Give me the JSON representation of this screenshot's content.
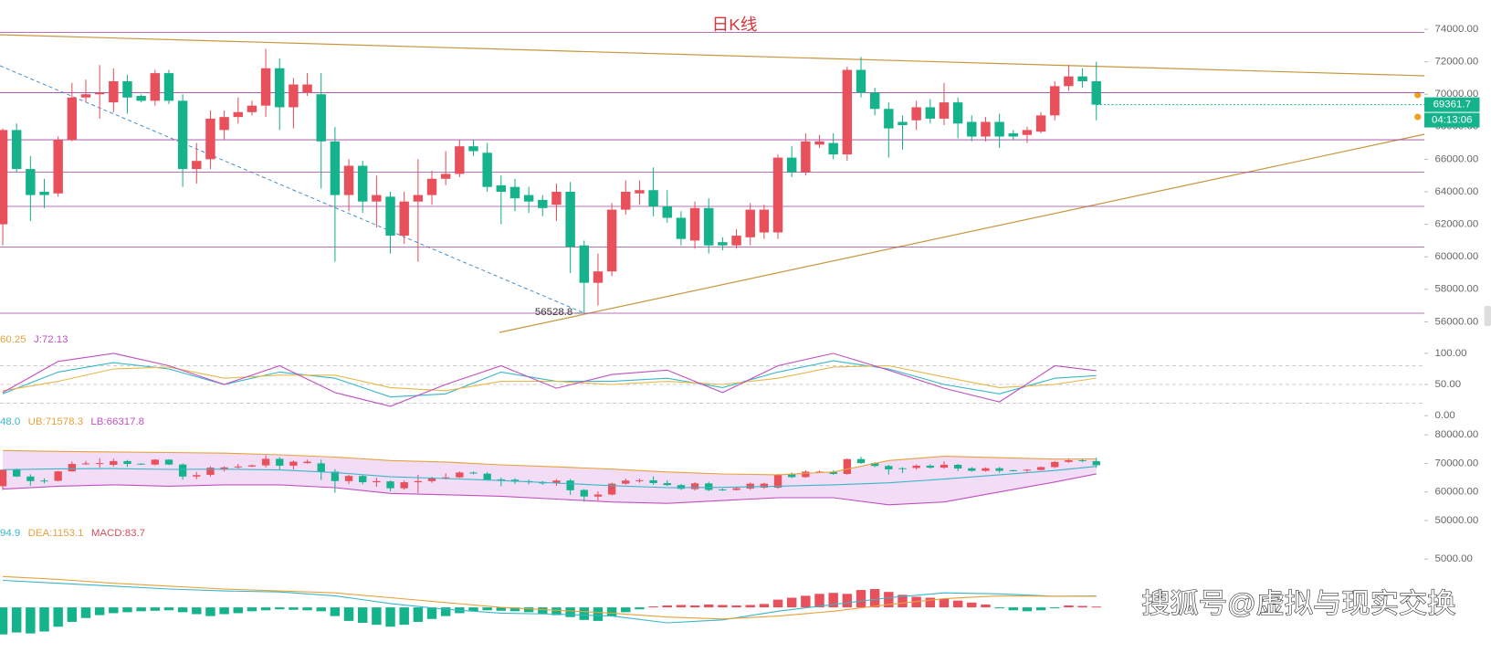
{
  "chart_data": [
    {
      "type": "candlestick",
      "title": "日K线",
      "countdown": "04:13:06",
      "xlim": [
        -0.2,
        102.7
      ],
      "ylim": [
        55460,
        75800
      ],
      "yticks": [
        {
          "value": 56000,
          "label": "56000.00"
        },
        {
          "value": 58000,
          "label": "58000.00"
        },
        {
          "value": 60000,
          "label": "60000.00"
        },
        {
          "value": 62000,
          "label": "62000.00"
        },
        {
          "value": 64000,
          "label": "64000.00"
        },
        {
          "value": 66000,
          "label": "66000.00"
        },
        {
          "value": 68000,
          "label": "68000.00"
        },
        {
          "value": 70000,
          "label": "70000.00"
        },
        {
          "value": 72000,
          "label": "72000.00"
        },
        {
          "value": 74000,
          "label": "74000.00"
        }
      ],
      "up_color": "#e8505b",
      "down_color": "#15b38b",
      "level_color": "#a040a0",
      "levels": [
        73800,
        70100,
        67200,
        65200,
        63100,
        60600,
        56528.8
      ],
      "open": [
        62000,
        67800,
        65400,
        64000,
        63900,
        67200,
        69800,
        70000,
        69500,
        70800,
        69900,
        69600,
        71300,
        69600,
        65400,
        66000,
        67800,
        68600,
        68900,
        69300,
        71600,
        69200,
        70100,
        70000,
        67100,
        63800,
        65600,
        63400,
        63700,
        61300,
        63400,
        63800,
        64800,
        65100,
        66800,
        66400,
        64400,
        64300,
        63800,
        63500,
        63200,
        64000,
        60700,
        58400,
        59100,
        62900,
        63900,
        64100,
        63100,
        62400,
        61000,
        63000,
        60900,
        60700,
        61200,
        61500,
        61500,
        66100,
        65200,
        66900,
        67000,
        66300,
        71500,
        70100,
        69100,
        68300,
        68400,
        69200,
        68500,
        69500,
        68300,
        67400,
        68300,
        67600,
        67500,
        67700,
        68700,
        70500,
        71100,
        70800
      ],
      "high": [
        67900,
        68200,
        66200,
        64800,
        67400,
        70700,
        70900,
        71800,
        71600,
        71200,
        70000,
        71500,
        71500,
        70000,
        67000,
        69000,
        69000,
        69800,
        69600,
        72800,
        72200,
        71000,
        71300,
        71300,
        68000,
        66000,
        65900,
        65000,
        64000,
        64000,
        66000,
        65300,
        66500,
        67200,
        67200,
        67000,
        65000,
        64800,
        64300,
        63800,
        64500,
        64600,
        61000,
        60200,
        63300,
        64700,
        64700,
        65500,
        64100,
        62800,
        63400,
        63600,
        61200,
        61700,
        63300,
        63200,
        66300,
        66800,
        67600,
        67500,
        67600,
        71700,
        72300,
        70400,
        69500,
        68700,
        69600,
        69700,
        70700,
        69800,
        68700,
        68600,
        68800,
        67800,
        68000,
        68900,
        70800,
        71800,
        71600,
        72000
      ],
      "low": [
        60700,
        65200,
        62200,
        63000,
        63700,
        67100,
        69500,
        68500,
        68900,
        68800,
        69500,
        69300,
        69400,
        64300,
        64500,
        65400,
        67200,
        68200,
        68700,
        68600,
        67800,
        67900,
        69900,
        64200,
        59700,
        62800,
        62700,
        61800,
        60200,
        60800,
        59700,
        63200,
        64400,
        64900,
        66200,
        64000,
        62000,
        62800,
        62700,
        62500,
        62200,
        59000,
        56528.8,
        57000,
        58800,
        62600,
        63200,
        62500,
        62100,
        60700,
        60500,
        60200,
        60400,
        60500,
        60700,
        61100,
        61100,
        64900,
        65000,
        66700,
        66000,
        65900,
        69800,
        68700,
        66100,
        66600,
        67800,
        68200,
        68100,
        67300,
        67100,
        67100,
        66700,
        67200,
        67000,
        67600,
        68400,
        70200,
        70400,
        68400
      ],
      "close": [
        67800,
        65400,
        63800,
        63800,
        67200,
        69800,
        70000,
        70100,
        70800,
        69800,
        69600,
        71300,
        69600,
        65400,
        65900,
        68500,
        68600,
        68900,
        69300,
        71600,
        69200,
        70600,
        70600,
        67100,
        63800,
        65600,
        63400,
        63800,
        61300,
        63400,
        63800,
        64800,
        65100,
        66800,
        66500,
        64300,
        64000,
        63600,
        63400,
        63000,
        64000,
        60600,
        58400,
        59100,
        62900,
        64000,
        64100,
        63100,
        62400,
        61100,
        63000,
        60700,
        60700,
        61300,
        62900,
        62900,
        66100,
        65200,
        67100,
        67100,
        66300,
        71500,
        70100,
        69100,
        67900,
        68100,
        69200,
        68500,
        69500,
        68200,
        67400,
        68300,
        67400,
        67400,
        67800,
        68700,
        70500,
        71100,
        70800,
        69361.7
      ]
    },
    {
      "type": "line",
      "header": [
        {
          "text": "60.25",
          "color": "#e6a23c"
        },
        {
          "text": "J:72.13",
          "color": "#c050c0"
        }
      ],
      "xlim": [
        -0.2,
        102.7
      ],
      "ylim": [
        -10,
        113
      ],
      "yticks": [
        {
          "value": 0,
          "label": "0.00"
        },
        {
          "value": 50,
          "label": "50.00"
        },
        {
          "value": 100,
          "label": "100.00"
        }
      ],
      "guides": [
        80,
        50,
        20
      ],
      "x": [
        0,
        4,
        8,
        12,
        16,
        20,
        24,
        28,
        32,
        36,
        40,
        44,
        48,
        52,
        56,
        60,
        64,
        68,
        72,
        76,
        79
      ],
      "series": [
        {
          "color": "#38b6c8",
          "values": [
            35,
            70,
            85,
            75,
            50,
            70,
            60,
            30,
            35,
            70,
            55,
            55,
            60,
            45,
            70,
            88,
            75,
            50,
            35,
            60,
            64.2
          ]
        },
        {
          "color": "#e6b84a",
          "values": [
            40,
            55,
            75,
            78,
            60,
            65,
            65,
            45,
            40,
            55,
            55,
            50,
            55,
            50,
            60,
            78,
            80,
            62,
            45,
            50,
            60.25
          ]
        },
        {
          "color": "#c050c0",
          "values": [
            37,
            87,
            100,
            80,
            50,
            80,
            37,
            15,
            50,
            80,
            44,
            66,
            73,
            37,
            80,
            100,
            73,
            44,
            22,
            80,
            72.13
          ]
        }
      ]
    },
    {
      "type": "boll",
      "header": [
        {
          "text": "48.0",
          "color": "#38b6c8"
        },
        {
          "text": "UB:71578.3",
          "color": "#e6a23c"
        },
        {
          "text": "LB:66317.8",
          "color": "#c050c0"
        }
      ],
      "xlim": [
        -0.2,
        102.7
      ],
      "ylim": [
        46800,
        82600
      ],
      "yticks": [
        {
          "value": 50000,
          "label": "50000.00"
        },
        {
          "value": 60000,
          "label": "60000.00"
        },
        {
          "value": 70000,
          "label": "70000.00"
        },
        {
          "value": 80000,
          "label": "80000.00"
        }
      ],
      "band_fill": "#f3dcf6",
      "x": [
        0,
        4,
        8,
        12,
        16,
        20,
        24,
        28,
        32,
        36,
        40,
        44,
        48,
        52,
        56,
        60,
        64,
        68,
        72,
        76,
        79
      ],
      "series": [
        {
          "color": "#e6a23c",
          "values": [
            74500,
            74200,
            74000,
            73800,
            73600,
            73000,
            72200,
            71000,
            70500,
            69500,
            68800,
            68000,
            67000,
            66300,
            66000,
            67000,
            71000,
            72500,
            72000,
            71500,
            71578.3
          ]
        },
        {
          "color": "#38b6c8",
          "values": [
            67800,
            68100,
            68200,
            67900,
            68000,
            67700,
            66800,
            65300,
            64700,
            64000,
            63100,
            62200,
            61500,
            61600,
            62000,
            62500,
            63200,
            64500,
            66000,
            67500,
            68948.0
          ]
        },
        {
          "color": "#c050c0",
          "values": [
            61000,
            62000,
            62500,
            62000,
            62500,
            62500,
            61500,
            59500,
            59000,
            58500,
            57500,
            56500,
            56000,
            57000,
            58000,
            58000,
            55500,
            56500,
            60000,
            63500,
            66317.8
          ]
        }
      ]
    },
    {
      "type": "macd",
      "header": [
        {
          "text": "94.9",
          "color": "#38b6c8"
        },
        {
          "text": "DEA:1153.1",
          "color": "#e6a23c"
        },
        {
          "text": "MACD:83.7",
          "color": "#d0505b"
        }
      ],
      "xlim": [
        -0.2,
        102.7
      ],
      "ylim": [
        -3300,
        7100
      ],
      "yticks": [
        {
          "value": 5000,
          "label": "5000.00"
        }
      ],
      "up_color": "#e8505b",
      "down_color": "#15b38b",
      "histogram": [
        -2800,
        -2600,
        -2700,
        -2500,
        -2000,
        -1500,
        -1100,
        -800,
        -600,
        -500,
        -400,
        -350,
        -300,
        -500,
        -700,
        -900,
        -700,
        -600,
        -400,
        -300,
        -200,
        -250,
        -300,
        -400,
        -900,
        -1400,
        -1600,
        -1800,
        -2000,
        -1800,
        -1500,
        -1200,
        -900,
        -600,
        -400,
        -300,
        -350,
        -400,
        -500,
        -700,
        -800,
        -1000,
        -1300,
        -1400,
        -900,
        -500,
        -200,
        100,
        200,
        250,
        200,
        300,
        250,
        200,
        250,
        350,
        800,
        1000,
        1200,
        1400,
        1500,
        1400,
        1800,
        1900,
        1600,
        1300,
        1100,
        1000,
        900,
        700,
        500,
        300,
        -100,
        -300,
        -400,
        -300,
        -100,
        200,
        150,
        83.7
      ],
      "x": [
        0,
        4,
        8,
        12,
        16,
        20,
        24,
        28,
        32,
        36,
        40,
        44,
        48,
        52,
        56,
        60,
        64,
        68,
        72,
        76,
        79
      ],
      "series": [
        {
          "color": "#38b6c8",
          "values": [
            2800,
            2500,
            2200,
            1900,
            1700,
            1600,
            1200,
            400,
            -200,
            -600,
            -700,
            -900,
            -1600,
            -1300,
            -400,
            300,
            1000,
            1500,
            1400,
            1150,
            1194.9
          ]
        },
        {
          "color": "#e6a23c",
          "values": [
            3200,
            2900,
            2500,
            2200,
            1900,
            1700,
            1500,
            1000,
            500,
            0,
            -300,
            -600,
            -1000,
            -1200,
            -900,
            -400,
            300,
            900,
            1200,
            1150,
            1153.1
          ]
        }
      ]
    }
  ],
  "watermark": "搜狐号@虚拟与现实交换"
}
